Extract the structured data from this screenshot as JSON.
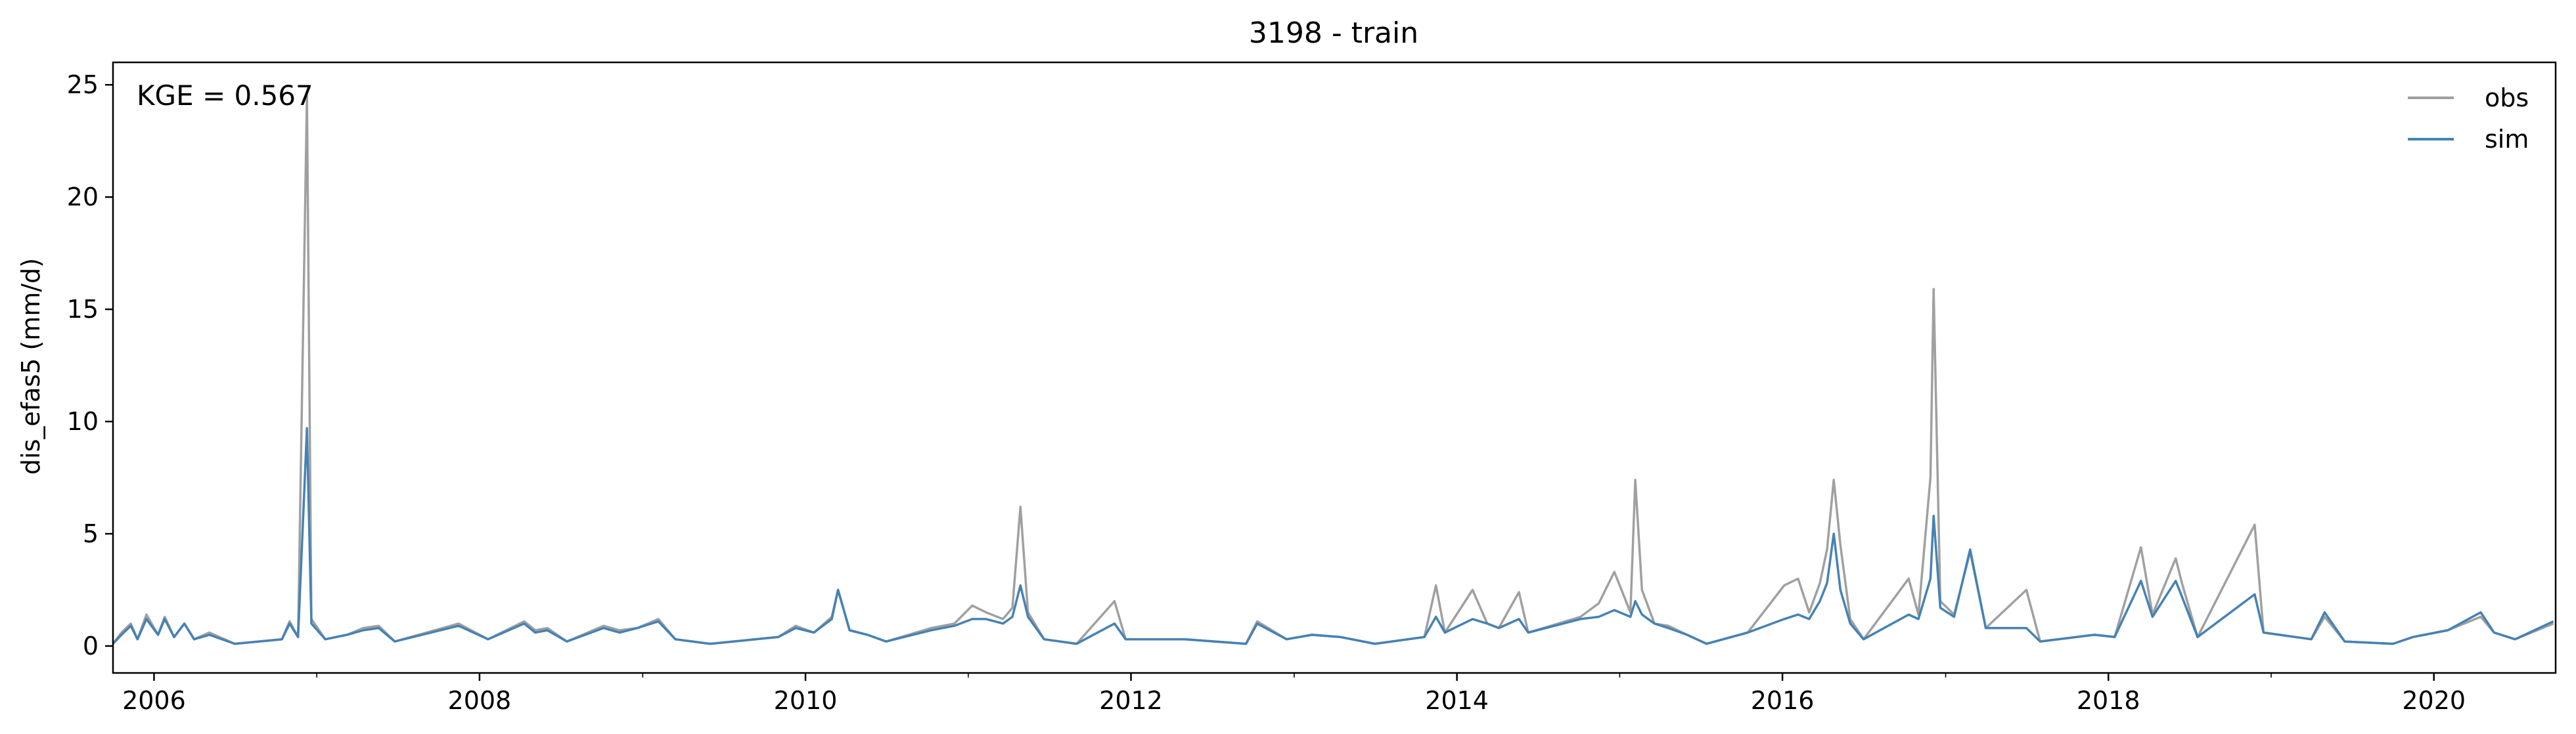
{
  "chart_data": {
    "type": "line",
    "title": "3198 - train",
    "ylabel": "dis_efas5 (mm/d)",
    "xlabel": "",
    "annotation": "KGE = 0.567",
    "xlim": [
      "2005-10-01",
      "2020-09-30"
    ],
    "ylim": [
      -1.2,
      26
    ],
    "x_ticks": [
      "2006",
      "2008",
      "2010",
      "2012",
      "2014",
      "2016",
      "2018",
      "2020"
    ],
    "y_ticks": [
      "0",
      "5",
      "10",
      "15",
      "20",
      "25"
    ],
    "legend": {
      "position": "top-right"
    },
    "series": [
      {
        "name": "obs",
        "color": "#a0a0a0",
        "points": [
          [
            "2005-10-01",
            0.1
          ],
          [
            "2005-10-20",
            0.6
          ],
          [
            "2005-11-10",
            1.0
          ],
          [
            "2005-11-25",
            0.3
          ],
          [
            "2005-12-15",
            1.4
          ],
          [
            "2006-01-10",
            0.5
          ],
          [
            "2006-01-25",
            1.3
          ],
          [
            "2006-02-15",
            0.4
          ],
          [
            "2006-03-10",
            1.0
          ],
          [
            "2006-04-01",
            0.3
          ],
          [
            "2006-05-05",
            0.6
          ],
          [
            "2006-07-01",
            0.1
          ],
          [
            "2006-10-15",
            0.3
          ],
          [
            "2006-11-01",
            1.1
          ],
          [
            "2006-11-20",
            0.4
          ],
          [
            "2006-12-10",
            24.5
          ],
          [
            "2006-12-20",
            1.2
          ],
          [
            "2007-01-20",
            0.3
          ],
          [
            "2007-03-10",
            0.5
          ],
          [
            "2007-04-15",
            0.8
          ],
          [
            "2007-05-20",
            0.9
          ],
          [
            "2007-06-25",
            0.2
          ],
          [
            "2007-11-15",
            1.0
          ],
          [
            "2008-01-20",
            0.3
          ],
          [
            "2008-04-10",
            1.1
          ],
          [
            "2008-05-05",
            0.7
          ],
          [
            "2008-06-01",
            0.8
          ],
          [
            "2008-07-15",
            0.2
          ],
          [
            "2008-10-05",
            0.9
          ],
          [
            "2008-11-10",
            0.7
          ],
          [
            "2008-12-20",
            0.8
          ],
          [
            "2009-02-05",
            1.2
          ],
          [
            "2009-03-15",
            0.3
          ],
          [
            "2009-06-01",
            0.1
          ],
          [
            "2009-11-01",
            0.4
          ],
          [
            "2009-12-10",
            0.9
          ],
          [
            "2010-01-20",
            0.6
          ],
          [
            "2010-03-01",
            1.3
          ],
          [
            "2010-03-15",
            2.5
          ],
          [
            "2010-04-10",
            0.7
          ],
          [
            "2010-05-20",
            0.5
          ],
          [
            "2010-07-01",
            0.2
          ],
          [
            "2010-10-10",
            0.8
          ],
          [
            "2010-12-01",
            1.0
          ],
          [
            "2011-01-10",
            1.8
          ],
          [
            "2011-02-10",
            1.5
          ],
          [
            "2011-03-20",
            1.2
          ],
          [
            "2011-04-10",
            1.7
          ],
          [
            "2011-04-28",
            6.2
          ],
          [
            "2011-05-15",
            1.5
          ],
          [
            "2011-06-20",
            0.3
          ],
          [
            "2011-09-01",
            0.1
          ],
          [
            "2011-11-25",
            2.0
          ],
          [
            "2011-12-20",
            0.3
          ],
          [
            "2012-05-01",
            0.3
          ],
          [
            "2012-09-15",
            0.1
          ],
          [
            "2012-10-10",
            1.1
          ],
          [
            "2012-12-15",
            0.3
          ],
          [
            "2013-02-10",
            0.5
          ],
          [
            "2013-04-15",
            0.4
          ],
          [
            "2013-07-01",
            0.1
          ],
          [
            "2013-10-20",
            0.4
          ],
          [
            "2013-11-15",
            2.7
          ],
          [
            "2013-12-05",
            0.6
          ],
          [
            "2014-02-05",
            2.5
          ],
          [
            "2014-03-10",
            1.0
          ],
          [
            "2014-04-05",
            0.8
          ],
          [
            "2014-05-20",
            2.4
          ],
          [
            "2014-06-10",
            0.6
          ],
          [
            "2014-10-05",
            1.3
          ],
          [
            "2014-11-15",
            1.9
          ],
          [
            "2014-12-20",
            3.3
          ],
          [
            "2015-01-25",
            1.5
          ],
          [
            "2015-02-05",
            7.4
          ],
          [
            "2015-02-20",
            2.5
          ],
          [
            "2015-03-20",
            1.0
          ],
          [
            "2015-04-20",
            0.9
          ],
          [
            "2015-06-01",
            0.5
          ],
          [
            "2015-07-15",
            0.1
          ],
          [
            "2015-10-15",
            0.6
          ],
          [
            "2016-01-05",
            2.7
          ],
          [
            "2016-02-05",
            3.0
          ],
          [
            "2016-03-01",
            1.5
          ],
          [
            "2016-03-25",
            2.8
          ],
          [
            "2016-04-10",
            4.3
          ],
          [
            "2016-04-25",
            7.4
          ],
          [
            "2016-05-10",
            4.5
          ],
          [
            "2016-06-01",
            1.2
          ],
          [
            "2016-07-01",
            0.3
          ],
          [
            "2016-10-10",
            3.0
          ],
          [
            "2016-11-01",
            1.4
          ],
          [
            "2016-11-28",
            7.5
          ],
          [
            "2016-12-05",
            15.9
          ],
          [
            "2016-12-20",
            2.0
          ],
          [
            "2017-01-20",
            1.4
          ],
          [
            "2017-02-25",
            4.2
          ],
          [
            "2017-04-01",
            0.8
          ],
          [
            "2017-07-01",
            2.5
          ],
          [
            "2017-08-01",
            0.2
          ],
          [
            "2017-12-01",
            0.5
          ],
          [
            "2018-01-15",
            0.4
          ],
          [
            "2018-03-15",
            4.4
          ],
          [
            "2018-04-10",
            1.4
          ],
          [
            "2018-06-01",
            3.9
          ],
          [
            "2018-06-15",
            2.8
          ],
          [
            "2018-07-20",
            0.4
          ],
          [
            "2018-11-25",
            5.4
          ],
          [
            "2018-12-15",
            0.6
          ],
          [
            "2019-04-01",
            0.3
          ],
          [
            "2019-05-01",
            1.3
          ],
          [
            "2019-06-15",
            0.2
          ],
          [
            "2019-10-01",
            0.1
          ],
          [
            "2019-11-15",
            0.4
          ],
          [
            "2020-02-01",
            0.7
          ],
          [
            "2020-04-15",
            1.3
          ],
          [
            "2020-05-15",
            0.6
          ],
          [
            "2020-07-01",
            0.3
          ],
          [
            "2020-09-25",
            1.0
          ]
        ]
      },
      {
        "name": "sim",
        "color": "#4682b4",
        "points": [
          [
            "2005-10-01",
            0.1
          ],
          [
            "2005-10-20",
            0.5
          ],
          [
            "2005-11-10",
            0.9
          ],
          [
            "2005-11-25",
            0.3
          ],
          [
            "2005-12-15",
            1.2
          ],
          [
            "2006-01-10",
            0.5
          ],
          [
            "2006-01-25",
            1.2
          ],
          [
            "2006-02-15",
            0.4
          ],
          [
            "2006-03-10",
            1.0
          ],
          [
            "2006-04-01",
            0.3
          ],
          [
            "2006-05-05",
            0.5
          ],
          [
            "2006-07-01",
            0.1
          ],
          [
            "2006-10-15",
            0.3
          ],
          [
            "2006-11-01",
            1.0
          ],
          [
            "2006-11-20",
            0.4
          ],
          [
            "2006-12-10",
            9.7
          ],
          [
            "2006-12-20",
            1.0
          ],
          [
            "2007-01-20",
            0.3
          ],
          [
            "2007-03-10",
            0.5
          ],
          [
            "2007-04-15",
            0.7
          ],
          [
            "2007-05-20",
            0.8
          ],
          [
            "2007-06-25",
            0.2
          ],
          [
            "2007-11-15",
            0.9
          ],
          [
            "2008-01-20",
            0.3
          ],
          [
            "2008-04-10",
            1.0
          ],
          [
            "2008-05-05",
            0.6
          ],
          [
            "2008-06-01",
            0.7
          ],
          [
            "2008-07-15",
            0.2
          ],
          [
            "2008-10-05",
            0.8
          ],
          [
            "2008-11-10",
            0.6
          ],
          [
            "2008-12-20",
            0.8
          ],
          [
            "2009-02-05",
            1.1
          ],
          [
            "2009-03-15",
            0.3
          ],
          [
            "2009-06-01",
            0.1
          ],
          [
            "2009-11-01",
            0.4
          ],
          [
            "2009-12-10",
            0.8
          ],
          [
            "2010-01-20",
            0.6
          ],
          [
            "2010-03-01",
            1.2
          ],
          [
            "2010-03-15",
            2.5
          ],
          [
            "2010-04-10",
            0.7
          ],
          [
            "2010-05-20",
            0.5
          ],
          [
            "2010-07-01",
            0.2
          ],
          [
            "2010-10-10",
            0.7
          ],
          [
            "2010-12-01",
            0.9
          ],
          [
            "2011-01-10",
            1.2
          ],
          [
            "2011-02-10",
            1.2
          ],
          [
            "2011-03-20",
            1.0
          ],
          [
            "2011-04-10",
            1.3
          ],
          [
            "2011-04-28",
            2.7
          ],
          [
            "2011-05-15",
            1.3
          ],
          [
            "2011-06-20",
            0.3
          ],
          [
            "2011-09-01",
            0.1
          ],
          [
            "2011-11-25",
            1.0
          ],
          [
            "2011-12-20",
            0.3
          ],
          [
            "2012-05-01",
            0.3
          ],
          [
            "2012-09-15",
            0.1
          ],
          [
            "2012-10-10",
            1.0
          ],
          [
            "2012-12-15",
            0.3
          ],
          [
            "2013-02-10",
            0.5
          ],
          [
            "2013-04-15",
            0.4
          ],
          [
            "2013-07-01",
            0.1
          ],
          [
            "2013-10-20",
            0.4
          ],
          [
            "2013-11-15",
            1.3
          ],
          [
            "2013-12-05",
            0.6
          ],
          [
            "2014-02-05",
            1.2
          ],
          [
            "2014-03-10",
            1.0
          ],
          [
            "2014-04-05",
            0.8
          ],
          [
            "2014-05-20",
            1.2
          ],
          [
            "2014-06-10",
            0.6
          ],
          [
            "2014-10-05",
            1.2
          ],
          [
            "2014-11-15",
            1.3
          ],
          [
            "2014-12-20",
            1.6
          ],
          [
            "2015-01-25",
            1.3
          ],
          [
            "2015-02-05",
            2.0
          ],
          [
            "2015-02-20",
            1.4
          ],
          [
            "2015-03-20",
            1.0
          ],
          [
            "2015-04-20",
            0.8
          ],
          [
            "2015-06-01",
            0.5
          ],
          [
            "2015-07-15",
            0.1
          ],
          [
            "2015-10-15",
            0.6
          ],
          [
            "2016-01-05",
            1.2
          ],
          [
            "2016-02-05",
            1.4
          ],
          [
            "2016-03-01",
            1.2
          ],
          [
            "2016-03-25",
            2.0
          ],
          [
            "2016-04-10",
            2.8
          ],
          [
            "2016-04-25",
            5.0
          ],
          [
            "2016-05-10",
            2.5
          ],
          [
            "2016-06-01",
            1.0
          ],
          [
            "2016-07-01",
            0.3
          ],
          [
            "2016-10-10",
            1.4
          ],
          [
            "2016-11-01",
            1.2
          ],
          [
            "2016-11-28",
            3.0
          ],
          [
            "2016-12-05",
            5.8
          ],
          [
            "2016-12-20",
            1.7
          ],
          [
            "2017-01-20",
            1.3
          ],
          [
            "2017-02-25",
            4.3
          ],
          [
            "2017-04-01",
            0.8
          ],
          [
            "2017-07-01",
            0.8
          ],
          [
            "2017-08-01",
            0.2
          ],
          [
            "2017-12-01",
            0.5
          ],
          [
            "2018-01-15",
            0.4
          ],
          [
            "2018-03-15",
            2.9
          ],
          [
            "2018-04-10",
            1.3
          ],
          [
            "2018-06-01",
            2.9
          ],
          [
            "2018-06-15",
            2.2
          ],
          [
            "2018-07-20",
            0.4
          ],
          [
            "2018-11-25",
            2.3
          ],
          [
            "2018-12-15",
            0.6
          ],
          [
            "2019-04-01",
            0.3
          ],
          [
            "2019-05-01",
            1.5
          ],
          [
            "2019-06-15",
            0.2
          ],
          [
            "2019-10-01",
            0.1
          ],
          [
            "2019-11-15",
            0.4
          ],
          [
            "2020-02-01",
            0.7
          ],
          [
            "2020-04-15",
            1.5
          ],
          [
            "2020-05-15",
            0.6
          ],
          [
            "2020-07-01",
            0.3
          ],
          [
            "2020-09-25",
            1.1
          ]
        ]
      }
    ]
  }
}
